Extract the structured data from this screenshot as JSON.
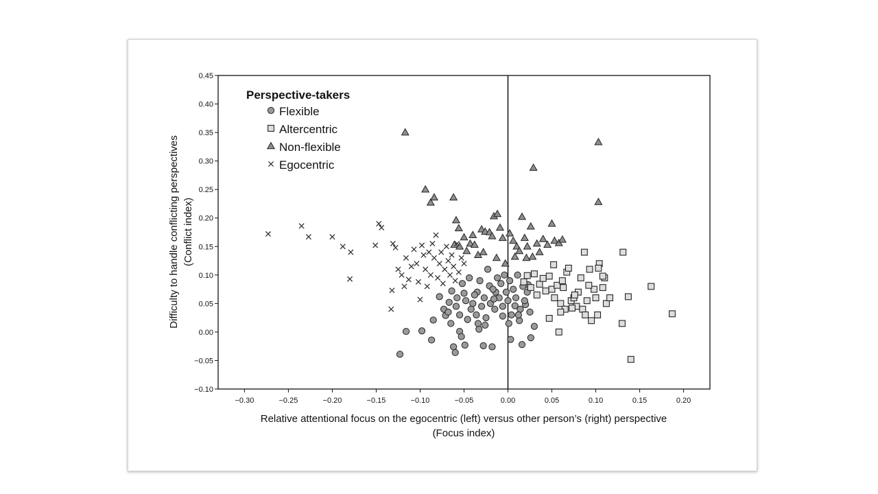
{
  "chart_data": {
    "type": "scatter",
    "xlabel": "Relative attentional focus on the egocentric (left) versus other person’s (right) perspective",
    "xlabel2": "(Focus index)",
    "ylabel": "Difficulty to handle conflicting perspectives",
    "ylabel2": "(Conflict index)",
    "xlim": [
      -0.33,
      0.23
    ],
    "ylim": [
      -0.1,
      0.45
    ],
    "x_ticks": [
      -0.3,
      -0.25,
      -0.2,
      -0.15,
      -0.1,
      -0.05,
      0.0,
      0.05,
      0.1,
      0.15,
      0.2
    ],
    "x_tick_labels": [
      "−0.30",
      "−0.25",
      "−0.20",
      "−0.15",
      "−0.10",
      "−0.05",
      "0.00",
      "0.05",
      "0.10",
      "0.15",
      "0.20"
    ],
    "y_ticks": [
      -0.1,
      -0.05,
      0.0,
      0.05,
      0.1,
      0.15,
      0.2,
      0.25,
      0.3,
      0.35,
      0.4,
      0.45
    ],
    "y_tick_labels": [
      "−0.10",
      "−0.05",
      "0.00",
      "0.05",
      "0.10",
      "0.15",
      "0.20",
      "0.25",
      "0.30",
      "0.35",
      "0.40",
      "0.45"
    ],
    "reference_line_x": 0.0,
    "grid": false,
    "legend": {
      "title": "Perspective-takers",
      "placement": "top-left"
    },
    "series": [
      {
        "name": "Flexible",
        "marker": "circle",
        "fill": "#9a9a9a",
        "points": [
          [
            -0.123,
            -0.039
          ],
          [
            -0.116,
            0.001
          ],
          [
            -0.098,
            0.002
          ],
          [
            -0.087,
            -0.014
          ],
          [
            -0.085,
            0.021
          ],
          [
            -0.071,
            0.029
          ],
          [
            -0.067,
            0.052
          ],
          [
            -0.062,
            -0.026
          ],
          [
            -0.06,
            -0.036
          ],
          [
            -0.059,
            0.045
          ],
          [
            -0.055,
            0.001
          ],
          [
            -0.053,
            -0.008
          ],
          [
            -0.049,
            -0.023
          ],
          [
            -0.04,
            0.05
          ],
          [
            -0.035,
            0.07
          ],
          [
            -0.033,
            0.005
          ],
          [
            -0.028,
            -0.024
          ],
          [
            -0.026,
            0.012
          ],
          [
            -0.021,
            0.081
          ],
          [
            -0.018,
            -0.026
          ],
          [
            -0.014,
            0.07
          ],
          [
            -0.006,
            0.028
          ],
          [
            0.003,
            -0.013
          ],
          [
            0.008,
            0.046
          ],
          [
            0.013,
            0.02
          ],
          [
            0.016,
            -0.022
          ],
          [
            0.02,
            0.048
          ],
          [
            0.026,
            -0.01
          ],
          [
            0.03,
            0.01
          ],
          [
            0.023,
            0.083
          ],
          [
            -0.078,
            0.062
          ],
          [
            -0.073,
            0.04
          ],
          [
            -0.068,
            0.035
          ],
          [
            -0.064,
            0.072
          ],
          [
            -0.058,
            0.06
          ],
          [
            -0.055,
            0.03
          ],
          [
            -0.052,
            0.085
          ],
          [
            -0.048,
            0.055
          ],
          [
            -0.046,
            0.022
          ],
          [
            -0.044,
            0.095
          ],
          [
            -0.042,
            0.04
          ],
          [
            -0.038,
            0.065
          ],
          [
            -0.036,
            0.03
          ],
          [
            -0.032,
            0.09
          ],
          [
            -0.03,
            0.045
          ],
          [
            -0.027,
            0.06
          ],
          [
            -0.025,
            0.025
          ],
          [
            -0.023,
            0.11
          ],
          [
            -0.02,
            0.05
          ],
          [
            -0.017,
            0.075
          ],
          [
            -0.015,
            0.04
          ],
          [
            -0.012,
            0.095
          ],
          [
            -0.01,
            0.06
          ],
          [
            -0.008,
            0.085
          ],
          [
            -0.006,
            0.045
          ],
          [
            -0.004,
            0.1
          ],
          [
            -0.002,
            0.07
          ],
          [
            0.0,
            0.055
          ],
          [
            0.002,
            0.09
          ],
          [
            0.004,
            0.03
          ],
          [
            0.006,
            0.075
          ],
          [
            0.009,
            0.06
          ],
          [
            0.011,
            0.1
          ],
          [
            0.014,
            0.04
          ],
          [
            0.017,
            0.08
          ],
          [
            0.019,
            0.055
          ],
          [
            0.022,
            0.07
          ],
          [
            0.025,
            0.035
          ],
          [
            -0.065,
            0.015
          ],
          [
            -0.05,
            0.068
          ],
          [
            -0.034,
            0.015
          ],
          [
            -0.016,
            0.058
          ],
          [
            0.001,
            0.015
          ],
          [
            0.012,
            0.03
          ]
        ]
      },
      {
        "name": "Altercentric",
        "marker": "square",
        "fill": "#dedede",
        "points": [
          [
            0.018,
            0.088
          ],
          [
            0.022,
            0.099
          ],
          [
            0.026,
            0.078
          ],
          [
            0.03,
            0.102
          ],
          [
            0.033,
            0.065
          ],
          [
            0.036,
            0.084
          ],
          [
            0.04,
            0.094
          ],
          [
            0.043,
            0.072
          ],
          [
            0.047,
            0.098
          ],
          [
            0.05,
            0.075
          ],
          [
            0.052,
            0.118
          ],
          [
            0.053,
            0.06
          ],
          [
            0.056,
            0.082
          ],
          [
            0.058,
            0.0
          ],
          [
            0.06,
            0.05
          ],
          [
            0.063,
            0.078
          ],
          [
            0.065,
            0.04
          ],
          [
            0.067,
            0.105
          ],
          [
            0.069,
            0.112
          ],
          [
            0.072,
            0.055
          ],
          [
            0.075,
            0.06
          ],
          [
            0.078,
            0.045
          ],
          [
            0.08,
            0.07
          ],
          [
            0.083,
            0.095
          ],
          [
            0.085,
            0.04
          ],
          [
            0.087,
            0.14
          ],
          [
            0.09,
            0.055
          ],
          [
            0.093,
            0.11
          ],
          [
            0.095,
            0.02
          ],
          [
            0.098,
            0.075
          ],
          [
            0.1,
            0.06
          ],
          [
            0.102,
            0.03
          ],
          [
            0.104,
            0.12
          ],
          [
            0.108,
            0.078
          ],
          [
            0.11,
            0.095
          ],
          [
            0.112,
            0.05
          ],
          [
            0.116,
            0.06
          ],
          [
            0.13,
            0.015
          ],
          [
            0.131,
            0.14
          ],
          [
            0.137,
            0.062
          ],
          [
            0.14,
            -0.048
          ],
          [
            0.163,
            0.08
          ],
          [
            0.187,
            0.032
          ],
          [
            0.047,
            0.024
          ],
          [
            0.06,
            0.035
          ],
          [
            0.073,
            0.042
          ],
          [
            0.088,
            0.03
          ],
          [
            0.103,
            0.112
          ],
          [
            0.108,
            0.098
          ],
          [
            0.062,
            0.09
          ],
          [
            0.076,
            0.065
          ],
          [
            0.092,
            0.082
          ]
        ]
      },
      {
        "name": "Non-flexible",
        "marker": "triangle",
        "fill": "#8f8f8f",
        "points": [
          [
            -0.117,
            0.35
          ],
          [
            -0.094,
            0.25
          ],
          [
            -0.088,
            0.227
          ],
          [
            -0.084,
            0.236
          ],
          [
            -0.062,
            0.236
          ],
          [
            -0.059,
            0.196
          ],
          [
            -0.056,
            0.182
          ],
          [
            -0.061,
            0.153
          ],
          [
            -0.055,
            0.15
          ],
          [
            -0.05,
            0.166
          ],
          [
            -0.047,
            0.142
          ],
          [
            -0.043,
            0.155
          ],
          [
            -0.038,
            0.153
          ],
          [
            -0.034,
            0.135
          ],
          [
            -0.03,
            0.18
          ],
          [
            -0.026,
            0.176
          ],
          [
            -0.021,
            0.175
          ],
          [
            -0.018,
            0.168
          ],
          [
            -0.016,
            0.203
          ],
          [
            -0.012,
            0.207
          ],
          [
            -0.009,
            0.183
          ],
          [
            -0.006,
            0.165
          ],
          [
            -0.003,
            0.12
          ],
          [
            0.002,
            0.173
          ],
          [
            0.006,
            0.16
          ],
          [
            0.01,
            0.15
          ],
          [
            0.013,
            0.142
          ],
          [
            0.016,
            0.202
          ],
          [
            0.019,
            0.165
          ],
          [
            0.022,
            0.15
          ],
          [
            0.026,
            0.185
          ],
          [
            0.028,
            0.132
          ],
          [
            0.029,
            0.288
          ],
          [
            0.033,
            0.155
          ],
          [
            0.036,
            0.14
          ],
          [
            0.04,
            0.163
          ],
          [
            0.045,
            0.153
          ],
          [
            0.05,
            0.19
          ],
          [
            0.053,
            0.16
          ],
          [
            0.058,
            0.156
          ],
          [
            0.062,
            0.162
          ],
          [
            0.103,
            0.333
          ],
          [
            0.103,
            0.228
          ],
          [
            -0.028,
            0.14
          ],
          [
            -0.013,
            0.13
          ],
          [
            0.008,
            0.132
          ],
          [
            0.021,
            0.13
          ],
          [
            -0.04,
            0.17
          ]
        ]
      },
      {
        "name": "Egocentric",
        "marker": "x",
        "fill": "#333333",
        "points": [
          [
            -0.273,
            0.172
          ],
          [
            -0.235,
            0.186
          ],
          [
            -0.227,
            0.167
          ],
          [
            -0.2,
            0.167
          ],
          [
            -0.188,
            0.15
          ],
          [
            -0.179,
            0.14
          ],
          [
            -0.18,
            0.093
          ],
          [
            -0.151,
            0.152
          ],
          [
            -0.147,
            0.19
          ],
          [
            -0.144,
            0.183
          ],
          [
            -0.133,
            0.04
          ],
          [
            -0.132,
            0.073
          ],
          [
            -0.131,
            0.155
          ],
          [
            -0.128,
            0.148
          ],
          [
            -0.125,
            0.11
          ],
          [
            -0.121,
            0.1
          ],
          [
            -0.118,
            0.08
          ],
          [
            -0.116,
            0.13
          ],
          [
            -0.113,
            0.092
          ],
          [
            -0.11,
            0.115
          ],
          [
            -0.107,
            0.145
          ],
          [
            -0.104,
            0.12
          ],
          [
            -0.102,
            0.088
          ],
          [
            -0.1,
            0.057
          ],
          [
            -0.098,
            0.152
          ],
          [
            -0.096,
            0.135
          ],
          [
            -0.094,
            0.11
          ],
          [
            -0.092,
            0.08
          ],
          [
            -0.09,
            0.14
          ],
          [
            -0.088,
            0.1
          ],
          [
            -0.086,
            0.155
          ],
          [
            -0.084,
            0.13
          ],
          [
            -0.082,
            0.17
          ],
          [
            -0.08,
            0.095
          ],
          [
            -0.078,
            0.12
          ],
          [
            -0.076,
            0.14
          ],
          [
            -0.074,
            0.085
          ],
          [
            -0.072,
            0.11
          ],
          [
            -0.07,
            0.15
          ],
          [
            -0.068,
            0.125
          ],
          [
            -0.066,
            0.1
          ],
          [
            -0.064,
            0.135
          ],
          [
            -0.062,
            0.115
          ],
          [
            -0.06,
            0.09
          ],
          [
            -0.058,
            0.155
          ],
          [
            -0.056,
            0.105
          ],
          [
            -0.053,
            0.13
          ],
          [
            -0.05,
            0.12
          ]
        ]
      }
    ]
  }
}
